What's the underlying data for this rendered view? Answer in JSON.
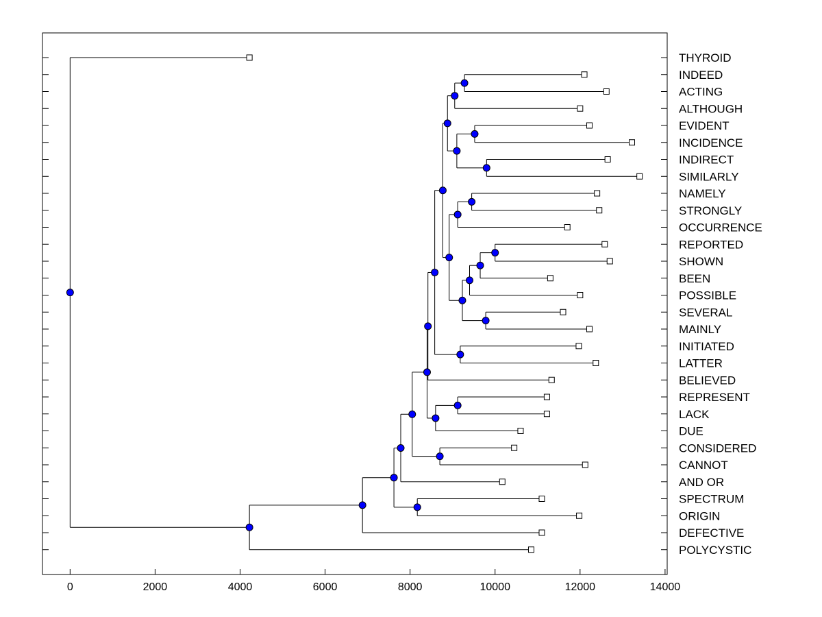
{
  "chart_data": {
    "type": "dendrogram",
    "orientation": "horizontal",
    "title": "",
    "xlabel": "",
    "ylabel": "",
    "xlim": [
      -650,
      14050
    ],
    "xticks": [
      0,
      2000,
      4000,
      6000,
      8000,
      10000,
      12000,
      14000
    ],
    "xtick_labels": [
      "0",
      "2000",
      "4000",
      "6000",
      "8000",
      "10000",
      "12000",
      "14000"
    ],
    "grid": false,
    "leaf_marker": "open-square",
    "node_marker": "filled-circle",
    "node_color": "#0000ff",
    "line_color": "#000000",
    "leaves": [
      {
        "label": "THYROID",
        "value": 4220
      },
      {
        "label": "INDEED",
        "value": 12100
      },
      {
        "label": "ACTING",
        "value": 12620
      },
      {
        "label": "ALTHOUGH",
        "value": 12000
      },
      {
        "label": "EVIDENT",
        "value": 12220
      },
      {
        "label": "INCIDENCE",
        "value": 13220
      },
      {
        "label": "INDIRECT",
        "value": 12650
      },
      {
        "label": "SIMILARLY",
        "value": 13400
      },
      {
        "label": "NAMELY",
        "value": 12400
      },
      {
        "label": "STRONGLY",
        "value": 12450
      },
      {
        "label": "OCCURRENCE",
        "value": 11700
      },
      {
        "label": "REPORTED",
        "value": 12580
      },
      {
        "label": "SHOWN",
        "value": 12700
      },
      {
        "label": "BEEN",
        "value": 11300
      },
      {
        "label": "POSSIBLE",
        "value": 12000
      },
      {
        "label": "SEVERAL",
        "value": 11600
      },
      {
        "label": "MAINLY",
        "value": 12220
      },
      {
        "label": "INITIATED",
        "value": 11970
      },
      {
        "label": "LATTER",
        "value": 12370
      },
      {
        "label": "BELIEVED",
        "value": 11330
      },
      {
        "label": "REPRESENT",
        "value": 11220
      },
      {
        "label": "LACK",
        "value": 11220
      },
      {
        "label": "DUE",
        "value": 10600
      },
      {
        "label": "CONSIDERED",
        "value": 10450
      },
      {
        "label": "CANNOT",
        "value": 12120
      },
      {
        "label": "AND OR",
        "value": 10170
      },
      {
        "label": "SPECTRUM",
        "value": 11100
      },
      {
        "label": "ORIGIN",
        "value": 11980
      },
      {
        "label": "DEFECTIVE",
        "value": 11100
      },
      {
        "label": "POLYCYSTIC",
        "value": 10850
      }
    ],
    "merges": [
      {
        "id": "n1",
        "left": 1,
        "right": 2,
        "value": 9280
      },
      {
        "id": "n2",
        "left": "n1",
        "right": 3,
        "value": 9050
      },
      {
        "id": "n3",
        "left": 4,
        "right": 5,
        "value": 9520
      },
      {
        "id": "n4",
        "left": 6,
        "right": 7,
        "value": 9800
      },
      {
        "id": "n5",
        "left": "n3",
        "right": "n4",
        "value": 9100
      },
      {
        "id": "n6",
        "left": "n2",
        "right": "n5",
        "value": 8880
      },
      {
        "id": "n7",
        "left": 8,
        "right": 9,
        "value": 9450
      },
      {
        "id": "n8",
        "left": "n7",
        "right": 10,
        "value": 9120
      },
      {
        "id": "n9",
        "left": 11,
        "right": 12,
        "value": 10000
      },
      {
        "id": "n10",
        "left": "n9",
        "right": 13,
        "value": 9650
      },
      {
        "id": "n11",
        "left": "n10",
        "right": 14,
        "value": 9400
      },
      {
        "id": "n12",
        "left": 15,
        "right": 16,
        "value": 9780
      },
      {
        "id": "n13",
        "left": "n11",
        "right": "n12",
        "value": 9230
      },
      {
        "id": "n14",
        "left": "n8",
        "right": "n13",
        "value": 8920
      },
      {
        "id": "n15",
        "left": "n6",
        "right": "n14",
        "value": 8770
      },
      {
        "id": "n16",
        "left": 17,
        "right": 18,
        "value": 9180
      },
      {
        "id": "n17",
        "left": "n15",
        "right": "n16",
        "value": 8580
      },
      {
        "id": "n18",
        "left": "n17",
        "right": 19,
        "value": 8420
      },
      {
        "id": "n19",
        "left": 20,
        "right": 21,
        "value": 9120
      },
      {
        "id": "n20",
        "left": "n19",
        "right": 22,
        "value": 8600
      },
      {
        "id": "n21",
        "left": "n18",
        "right": "n20",
        "value": 8400
      },
      {
        "id": "n22",
        "left": 23,
        "right": 24,
        "value": 8700
      },
      {
        "id": "n23",
        "left": "n21",
        "right": "n22",
        "value": 8050
      },
      {
        "id": "n24",
        "left": "n23",
        "right": 25,
        "value": 7780
      },
      {
        "id": "n25",
        "left": 26,
        "right": 27,
        "value": 8170
      },
      {
        "id": "n26",
        "left": "n24",
        "right": "n25",
        "value": 7620
      },
      {
        "id": "n27",
        "left": "n26",
        "right": 28,
        "value": 6880
      },
      {
        "id": "n28",
        "left": "n27",
        "right": 29,
        "value": 4220
      },
      {
        "id": "n29",
        "left": 0,
        "right": "n28",
        "value": 0
      }
    ]
  }
}
